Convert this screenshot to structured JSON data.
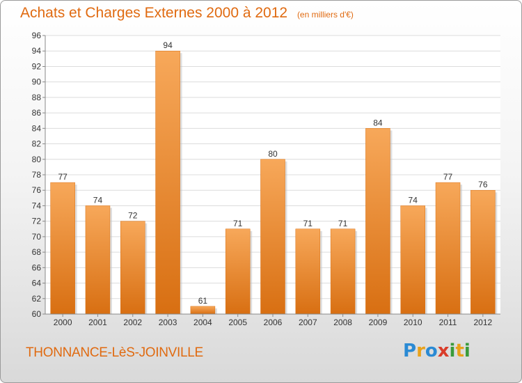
{
  "title": "Achats et Charges Externes 2000 à 2012",
  "subtitle": "(en milliers d'€)",
  "commune": "THONNANCE-LèS-JOINVILLE",
  "logo": {
    "text": "Proxiti",
    "letters": [
      {
        "ch": "P",
        "color": "#2a8ad4"
      },
      {
        "ch": "r",
        "color": "#e9a21b"
      },
      {
        "ch": "o",
        "color": "#2a8ad4"
      },
      {
        "ch": "x",
        "color": "#d93c2a"
      },
      {
        "ch": "i",
        "color": "#3a9b3a"
      },
      {
        "ch": "t",
        "color": "#e9a21b"
      },
      {
        "ch": "i",
        "color": "#3a9b3a"
      }
    ]
  },
  "colors": {
    "bar": "#f08a2c",
    "bar_light": "#f7a85a",
    "bar_dark": "#d86f12",
    "text": "#e06a10"
  },
  "chart_data": {
    "type": "bar",
    "categories": [
      "2000",
      "2001",
      "2002",
      "2003",
      "2004",
      "2005",
      "2006",
      "2007",
      "2008",
      "2009",
      "2010",
      "2011",
      "2012"
    ],
    "values": [
      77,
      74,
      72,
      94,
      61,
      71,
      80,
      71,
      71,
      84,
      74,
      77,
      76
    ],
    "ylim": [
      60,
      96
    ],
    "yticks": [
      60,
      62,
      64,
      66,
      68,
      70,
      72,
      74,
      76,
      78,
      80,
      82,
      84,
      86,
      88,
      90,
      92,
      94,
      96
    ],
    "grid": true,
    "data_labels": true
  }
}
